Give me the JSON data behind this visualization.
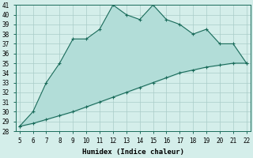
{
  "xlabel": "Humidex (Indice chaleur)",
  "x_values": [
    5,
    6,
    7,
    8,
    9,
    10,
    11,
    12,
    13,
    14,
    15,
    16,
    17,
    18,
    19,
    20,
    21,
    22
  ],
  "y_upper": [
    28.5,
    30,
    33,
    35,
    37.5,
    37.5,
    38.5,
    41,
    40,
    39.5,
    41,
    39.5,
    39,
    38,
    38.5,
    37,
    37,
    35
  ],
  "y_lower": [
    28.5,
    28.8,
    29.2,
    29.6,
    30.0,
    30.5,
    31.0,
    31.5,
    32.0,
    32.5,
    33.0,
    33.5,
    34.0,
    34.3,
    34.6,
    34.8,
    35.0,
    35.0
  ],
  "line_color": "#1a6b5a",
  "fill_color": "#b2ddd8",
  "bg_color": "#d4eeea",
  "grid_color": "#aaccc8",
  "ylim": [
    28,
    41
  ],
  "xlim": [
    5,
    22
  ],
  "yticks": [
    28,
    29,
    30,
    31,
    32,
    33,
    34,
    35,
    36,
    37,
    38,
    39,
    40,
    41
  ],
  "xticks": [
    5,
    6,
    7,
    8,
    9,
    10,
    11,
    12,
    13,
    14,
    15,
    16,
    17,
    18,
    19,
    20,
    21,
    22
  ]
}
